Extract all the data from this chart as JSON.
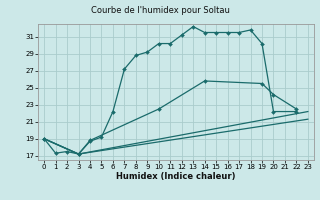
{
  "title": "Courbe de l'humidex pour Soltau",
  "xlabel": "Humidex (Indice chaleur)",
  "bg_color": "#cce8e8",
  "grid_color": "#aacccc",
  "line_color": "#1a6b6b",
  "xlim": [
    -0.5,
    23.5
  ],
  "ylim": [
    16.5,
    32.5
  ],
  "xticks": [
    0,
    1,
    2,
    3,
    4,
    5,
    6,
    7,
    8,
    9,
    10,
    11,
    12,
    13,
    14,
    15,
    16,
    17,
    18,
    19,
    20,
    21,
    22,
    23
  ],
  "yticks": [
    17,
    19,
    21,
    23,
    25,
    27,
    29,
    31
  ],
  "line1_x": [
    0,
    1,
    2,
    3,
    4,
    5,
    6,
    7,
    8,
    9,
    10,
    11,
    12,
    13,
    14,
    15,
    16,
    17,
    18,
    19,
    20,
    22
  ],
  "line1_y": [
    19,
    17.3,
    17.5,
    17.2,
    18.7,
    19.2,
    22.2,
    27.2,
    28.8,
    29.2,
    30.2,
    30.2,
    31.2,
    32.2,
    31.5,
    31.5,
    31.5,
    31.5,
    31.8,
    30.2,
    22.2,
    22.2
  ],
  "line2_x": [
    0,
    3,
    4,
    10,
    14,
    19,
    20,
    22
  ],
  "line2_y": [
    19,
    17.2,
    18.8,
    22.5,
    25.8,
    25.5,
    24.2,
    22.5
  ],
  "line3_x": [
    0,
    3,
    23
  ],
  "line3_y": [
    19,
    17.2,
    22.2
  ],
  "line4_x": [
    0,
    3,
    23
  ],
  "line4_y": [
    19,
    17.2,
    21.3
  ]
}
